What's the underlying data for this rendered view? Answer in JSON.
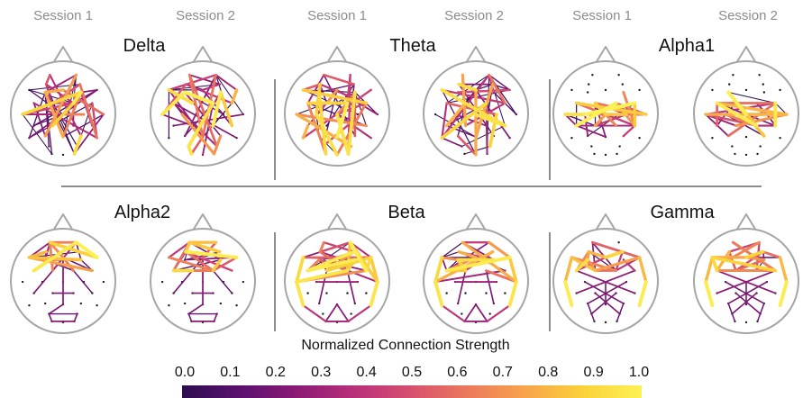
{
  "session_labels": [
    "Session 1",
    "Session 2"
  ],
  "bands": [
    {
      "name": "Delta",
      "pattern": "dense"
    },
    {
      "name": "Theta",
      "pattern": "dense"
    },
    {
      "name": "Alpha1",
      "pattern": "central"
    },
    {
      "name": "Alpha2",
      "pattern": "frontal-midline"
    },
    {
      "name": "Beta",
      "pattern": "fronto-temporal"
    },
    {
      "name": "Gamma",
      "pattern": "fronto-temporal-cross"
    }
  ],
  "colorbar": {
    "title": "Normalized Connection Strength",
    "ticks": [
      "0.0",
      "0.1",
      "0.2",
      "0.3",
      "0.4",
      "0.5",
      "0.6",
      "0.7",
      "0.8",
      "0.9",
      "1.0"
    ],
    "range": [
      0.0,
      1.0
    ],
    "colormap": "inferno",
    "stops": [
      "#2d0e4e",
      "#5a1070",
      "#8c1a74",
      "#b8307a",
      "#d8506e",
      "#ec7a5c",
      "#f8a54a",
      "#fbd23a",
      "#fbf255"
    ]
  },
  "colors": {
    "head_outline": "#a6a6a6",
    "session_label": "#8c8c8c",
    "separator": "#1a1a1a",
    "electrode": "#1a1a1a"
  }
}
